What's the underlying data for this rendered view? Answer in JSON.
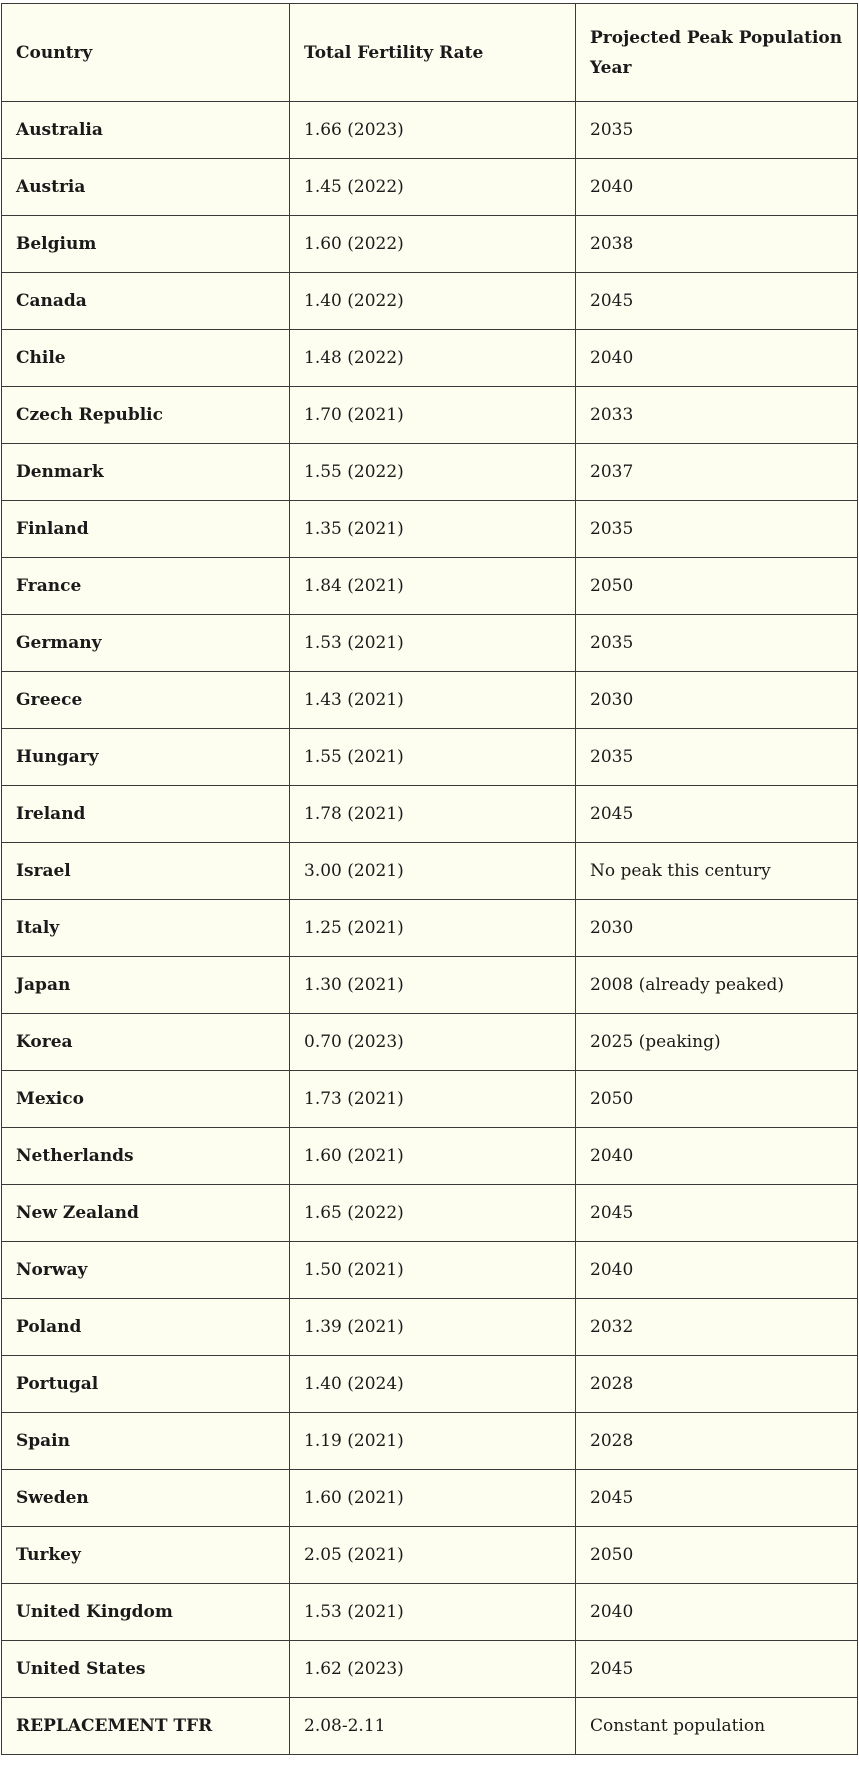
{
  "table": {
    "headers": [
      "Country",
      "Total Fertility Rate",
      "Projected Peak Population Year"
    ],
    "rows": [
      [
        "Australia",
        "1.66 (2023)",
        "2035"
      ],
      [
        "Austria",
        "1.45 (2022)",
        "2040"
      ],
      [
        "Belgium",
        "1.60 (2022)",
        "2038"
      ],
      [
        "Canada",
        "1.40 (2022)",
        "2045"
      ],
      [
        "Chile",
        "1.48 (2022)",
        "2040"
      ],
      [
        "Czech Republic",
        "1.70 (2021)",
        "2033"
      ],
      [
        "Denmark",
        "1.55 (2022)",
        "2037"
      ],
      [
        "Finland",
        "1.35 (2021)",
        "2035"
      ],
      [
        "France",
        "1.84 (2021)",
        "2050"
      ],
      [
        "Germany",
        "1.53 (2021)",
        "2035"
      ],
      [
        "Greece",
        "1.43 (2021)",
        "2030"
      ],
      [
        "Hungary",
        "1.55 (2021)",
        "2035"
      ],
      [
        "Ireland",
        "1.78 (2021)",
        "2045"
      ],
      [
        "Israel",
        "3.00 (2021)",
        "No peak this century"
      ],
      [
        "Italy",
        "1.25 (2021)",
        "2030"
      ],
      [
        "Japan",
        "1.30 (2021)",
        "2008 (already peaked)"
      ],
      [
        "Korea",
        "0.70 (2023)",
        "2025 (peaking)"
      ],
      [
        "Mexico",
        "1.73 (2021)",
        "2050"
      ],
      [
        "Netherlands",
        "1.60 (2021)",
        "2040"
      ],
      [
        "New Zealand",
        "1.65 (2022)",
        "2045"
      ],
      [
        "Norway",
        "1.50 (2021)",
        "2040"
      ],
      [
        "Poland",
        "1.39 (2021)",
        "2032"
      ],
      [
        "Portugal",
        "1.40 (2024)",
        "2028"
      ],
      [
        "Spain",
        "1.19 (2021)",
        "2028"
      ],
      [
        "Sweden",
        "1.60 (2021)",
        "2045"
      ],
      [
        "Turkey",
        "2.05 (2021)",
        "2050"
      ],
      [
        "United Kingdom",
        "1.53 (2021)",
        "2040"
      ],
      [
        "United States",
        "1.62 (2023)",
        "2045"
      ],
      [
        "REPLACEMENT TFR",
        "2.08-2.11",
        "Constant population"
      ]
    ]
  },
  "colors": {
    "background": "#fdfdf0",
    "border": "#3a3a3a",
    "text": "#1a1a1a"
  }
}
